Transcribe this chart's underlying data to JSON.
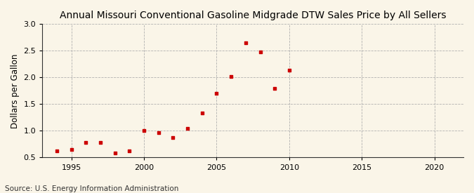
{
  "title": "Annual Missouri Conventional Gasoline Midgrade DTW Sales Price by All Sellers",
  "ylabel": "Dollars per Gallon",
  "source": "Source: U.S. Energy Information Administration",
  "years": [
    1994,
    1995,
    1996,
    1997,
    1998,
    1999,
    2000,
    2001,
    2002,
    2003,
    2004,
    2005,
    2006,
    2007,
    2008,
    2009,
    2010
  ],
  "values": [
    0.63,
    0.65,
    0.78,
    0.78,
    0.59,
    0.63,
    1.01,
    0.97,
    0.88,
    1.05,
    1.33,
    1.7,
    2.02,
    2.65,
    2.48,
    1.79,
    2.14
  ],
  "marker_color": "#cc0000",
  "background_color": "#faf5e8",
  "grid_color": "#aaaaaa",
  "xlim": [
    1993,
    2022
  ],
  "ylim": [
    0.5,
    3.0
  ],
  "xticks": [
    1995,
    2000,
    2005,
    2010,
    2015,
    2020
  ],
  "yticks": [
    0.5,
    1.0,
    1.5,
    2.0,
    2.5,
    3.0
  ],
  "title_fontsize": 10,
  "label_fontsize": 8.5,
  "tick_fontsize": 8,
  "source_fontsize": 7.5
}
